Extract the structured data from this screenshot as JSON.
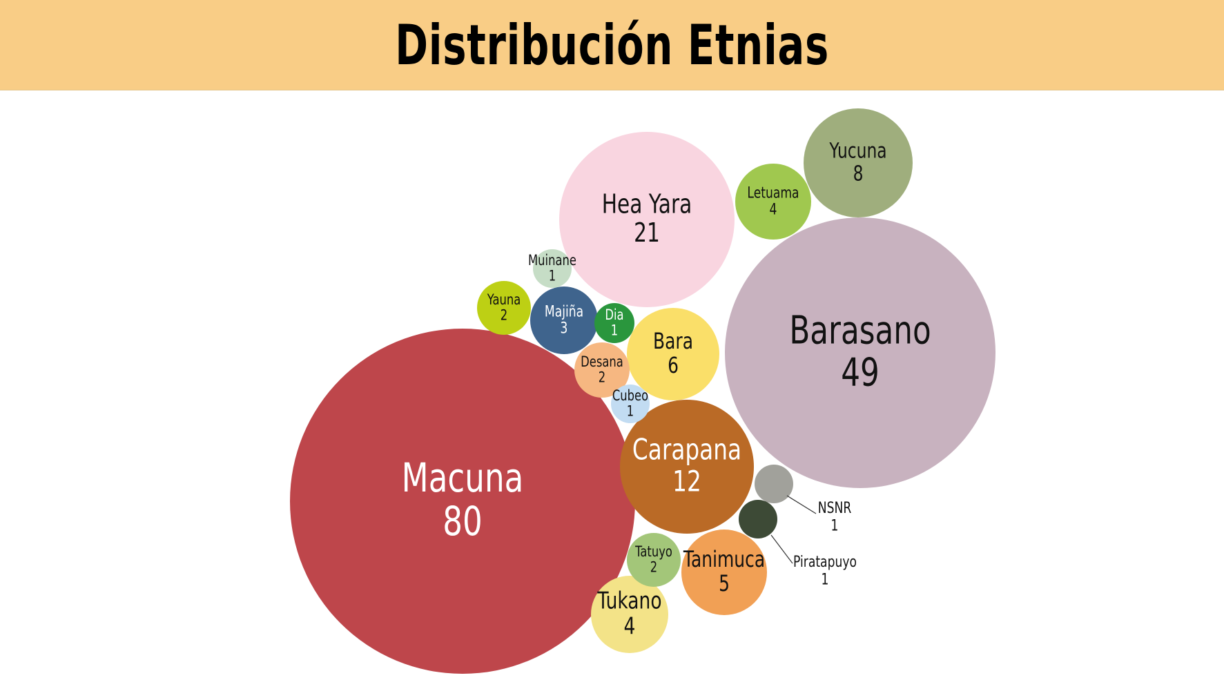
{
  "title": "Distribución Etnias",
  "chart_data": {
    "type": "bubble",
    "title": "Distribución Etnias",
    "series": [
      {
        "name": "Macuna",
        "value": 80,
        "display_value": "80",
        "color": "#be464b",
        "text_color": "#ffffff"
      },
      {
        "name": "Barasano",
        "value": 49,
        "display_value": "49",
        "color": "#c8b2bf",
        "text_color": "#111111"
      },
      {
        "name": "Hea Yara",
        "value": 21,
        "display_value": "21",
        "color": "#f9d5e0",
        "text_color": "#111111"
      },
      {
        "name": "Carapana",
        "value": 12,
        "display_value": "12",
        "color": "#ba6a26",
        "text_color": "#ffffff"
      },
      {
        "name": "Yucuna",
        "value": 8,
        "display_value": "8",
        "color": "#9fae7d",
        "text_color": "#111111"
      },
      {
        "name": "Bara",
        "value": 6,
        "display_value": "6",
        "color": "#fadf69",
        "text_color": "#111111"
      },
      {
        "name": "Tanimuca",
        "value": 5,
        "display_value": "5",
        "color": "#f1a055",
        "text_color": "#111111"
      },
      {
        "name": "Letuama",
        "value": 4,
        "display_value": "4",
        "color": "#a0c84f",
        "text_color": "#111111"
      },
      {
        "name": "Tukano",
        "value": 4,
        "display_value": "4",
        "color": "#f3e388",
        "text_color": "#111111"
      },
      {
        "name": "Majiña",
        "value": 3,
        "display_value": "3",
        "color": "#3f648d",
        "text_color": "#ffffff"
      },
      {
        "name": "Yauna",
        "value": 2,
        "display_value": "2",
        "color": "#bdd014",
        "text_color": "#111111"
      },
      {
        "name": "Desana",
        "value": 2,
        "display_value": "2",
        "color": "#f6b781",
        "text_color": "#111111"
      },
      {
        "name": "Tatuyo",
        "value": 2,
        "display_value": "2",
        "color": "#a3c679",
        "text_color": "#111111"
      },
      {
        "name": "Muinane",
        "value": 1,
        "display_value": "1",
        "color": "#c6ddc6",
        "text_color": "#111111"
      },
      {
        "name": "Dia",
        "value": 1,
        "display_value": "1",
        "color": "#2a963d",
        "text_color": "#ffffff"
      },
      {
        "name": "Cubeo",
        "value": 1,
        "display_value": "1",
        "color": "#c2dcf2",
        "text_color": "#111111"
      },
      {
        "name": "NSNR",
        "value": 1,
        "display_value": "1",
        "color": "#a1a19b",
        "text_color": "#111111"
      },
      {
        "name": "Piratapuyo",
        "value": 1,
        "display_value": "1",
        "color": "#3d4a36",
        "text_color": "#111111"
      }
    ]
  }
}
